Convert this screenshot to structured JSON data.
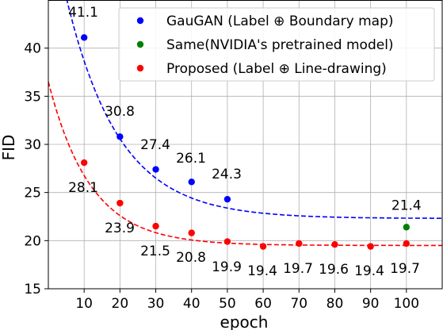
{
  "chart_data": {
    "type": "scatter",
    "title": "",
    "xlabel": "epoch",
    "ylabel": "FID",
    "xlim": [
      0,
      110
    ],
    "ylim": [
      15,
      45
    ],
    "xticks": [
      10,
      20,
      30,
      40,
      50,
      60,
      70,
      80,
      90,
      100
    ],
    "yticks": [
      15,
      20,
      25,
      30,
      35,
      40
    ],
    "grid": true,
    "legend_position": "top-right",
    "series": [
      {
        "name": "GauGAN (Label ⊕ Boundary map)",
        "color": "#0000ff",
        "points": [
          {
            "x": 10,
            "y": 41.1,
            "label": "41.1"
          },
          {
            "x": 20,
            "y": 30.8,
            "label": "30.8"
          },
          {
            "x": 30,
            "y": 27.4,
            "label": "27.4"
          },
          {
            "x": 40,
            "y": 26.1,
            "label": "26.1"
          },
          {
            "x": 50,
            "y": 24.3,
            "label": "24.3"
          }
        ],
        "fit": {
          "style": "dashed",
          "a": 22.3,
          "b": 32.3,
          "k": 0.068
        }
      },
      {
        "name": "Same(NVIDIA's pretrained model)",
        "color": "#008000",
        "points": [
          {
            "x": 100,
            "y": 21.4,
            "label": "21.4"
          }
        ]
      },
      {
        "name": "Proposed (Label ⊕ Line-drawing)",
        "color": "#ff0000",
        "points": [
          {
            "x": 10,
            "y": 28.1,
            "label": "28.1"
          },
          {
            "x": 20,
            "y": 23.9,
            "label": "23.9"
          },
          {
            "x": 30,
            "y": 21.5,
            "label": "21.5"
          },
          {
            "x": 40,
            "y": 20.8,
            "label": "20.8"
          },
          {
            "x": 50,
            "y": 19.9,
            "label": "19.9"
          },
          {
            "x": 60,
            "y": 19.4,
            "label": "19.4"
          },
          {
            "x": 70,
            "y": 19.7,
            "label": "19.7"
          },
          {
            "x": 80,
            "y": 19.6,
            "label": "19.6"
          },
          {
            "x": 90,
            "y": 19.4,
            "label": "19.4"
          },
          {
            "x": 100,
            "y": 19.7,
            "label": "19.7"
          }
        ],
        "fit": {
          "style": "dashed",
          "a": 19.5,
          "b": 17.0,
          "k": 0.085
        }
      }
    ]
  }
}
